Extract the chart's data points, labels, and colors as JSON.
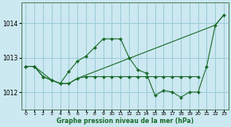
{
  "title": "Graphe pression niveau de la mer (hPa)",
  "bg_color": "#cce8f0",
  "grid_color": "#99ccd8",
  "line_color": "#1a6b2a",
  "marker_color": "#1a6b2a",
  "xlim": [
    -0.5,
    23.5
  ],
  "ylim": [
    1011.5,
    1014.6
  ],
  "xticks": [
    0,
    1,
    2,
    3,
    4,
    5,
    6,
    7,
    8,
    9,
    10,
    11,
    12,
    13,
    14,
    15,
    16,
    17,
    18,
    19,
    20,
    21,
    22,
    23
  ],
  "yticks": [
    1012,
    1013,
    1014
  ],
  "series1_x": [
    0,
    1,
    2,
    3,
    4,
    5,
    6,
    7,
    8,
    9,
    10,
    11,
    12,
    13,
    14,
    15,
    16,
    17,
    18,
    19,
    20,
    21,
    22,
    23
  ],
  "series1_y": [
    1012.75,
    1012.75,
    1012.45,
    1012.35,
    1012.25,
    1012.6,
    1012.9,
    1013.05,
    1013.3,
    1013.55,
    1013.55,
    1013.55,
    1013.0,
    1012.65,
    1012.55,
    1011.9,
    1012.05,
    1012.0,
    1011.85,
    1012.0,
    1012.0,
    1012.75,
    1013.95,
    1014.25
  ],
  "series2_x": [
    0,
    1,
    3,
    4,
    5,
    6,
    22,
    23
  ],
  "series2_y": [
    1012.75,
    1012.75,
    1012.35,
    1012.25,
    1012.25,
    1012.4,
    1013.95,
    1014.25
  ],
  "series3_x": [
    0,
    1,
    2,
    3,
    4,
    5,
    6,
    7,
    8,
    9,
    10,
    11,
    12,
    13,
    14,
    15,
    16,
    17,
    18,
    19,
    20
  ],
  "series3_y": [
    1012.75,
    1012.75,
    1012.45,
    1012.35,
    1012.25,
    1012.25,
    1012.4,
    1012.45,
    1012.45,
    1012.45,
    1012.45,
    1012.45,
    1012.45,
    1012.45,
    1012.45,
    1012.45,
    1012.45,
    1012.45,
    1012.45,
    1012.45,
    1012.45
  ]
}
